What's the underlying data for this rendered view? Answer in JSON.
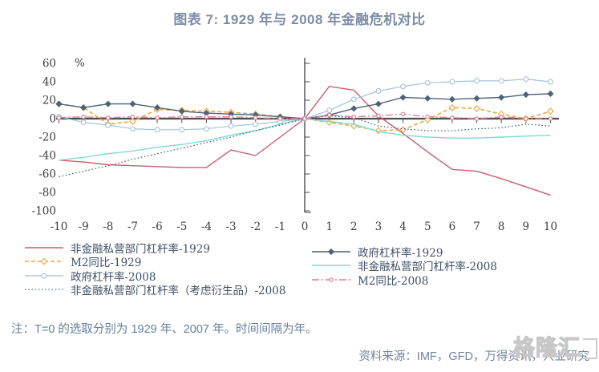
{
  "title": "图表 7: 1929 年与 2008 年金融危机对比",
  "note": "注：T=0 的选取分别为 1929 年、2007 年。时间间隔为年。",
  "source": "资料来源：IMF，GFD，万得资讯，兴业研究",
  "watermark": "格隆汇",
  "colors": {
    "title": "#7e8ca6",
    "note": "#66809f",
    "source": "#75859c",
    "legend_text": "#3e4f66",
    "axis": "#4d4d4d",
    "tick_label": "#3c3c3c"
  },
  "chart_data": {
    "type": "line",
    "unit_label": "%",
    "x": [
      -10,
      -9,
      -8,
      -7,
      -6,
      -5,
      -4,
      -3,
      -2,
      -1,
      0,
      1,
      2,
      3,
      4,
      5,
      6,
      7,
      8,
      9,
      10
    ],
    "xticks": [
      -10,
      -9,
      -8,
      -7,
      -6,
      -5,
      -4,
      -3,
      -2,
      -1,
      0,
      1,
      2,
      3,
      4,
      5,
      6,
      7,
      8,
      9,
      10
    ],
    "yticks": [
      60,
      40,
      20,
      0,
      -20,
      -40,
      -60,
      -80,
      -100
    ],
    "ylim": [
      -100,
      60
    ],
    "grid": false,
    "legend_position": "bottom",
    "series": [
      {
        "id": "private_1929",
        "name": "非金融私营部门杠杆率-1929",
        "color": "#c75f6e",
        "style": "solid",
        "marker": "none",
        "width": 1.4,
        "values": [
          -45,
          -47,
          -50,
          -51,
          -52,
          -53,
          -53,
          -34,
          -40,
          -20,
          0,
          35,
          31,
          3,
          -16,
          -36,
          -55,
          -57,
          -65,
          -74,
          -83
        ]
      },
      {
        "id": "m2_1929",
        "name": "M2同比-1929",
        "color": "#e8a93e",
        "style": "dashed",
        "marker": "diamond-open",
        "width": 1.6,
        "values": [
          16,
          12,
          -6,
          -3,
          10,
          9,
          8,
          7,
          5,
          2,
          0,
          -4,
          -8,
          -13,
          -12,
          -1,
          12,
          11,
          5,
          0,
          8
        ]
      },
      {
        "id": "gov_1929",
        "name": "政府杠杆率-1929",
        "color": "#4d6379",
        "style": "solid",
        "marker": "diamond",
        "width": 1.4,
        "values": [
          16,
          12,
          16,
          16,
          12,
          8,
          6,
          5,
          4,
          2,
          0,
          4,
          11,
          16,
          23,
          22,
          21,
          22,
          23,
          26,
          27
        ]
      },
      {
        "id": "gov_2008",
        "name": "政府杠杆率-2008",
        "color": "#a6c1dd",
        "style": "solid",
        "marker": "circle-open",
        "width": 1.2,
        "values": [
          2,
          -4,
          -7,
          -11,
          -12,
          -12,
          -11,
          -8,
          -6,
          -3,
          0,
          9,
          21,
          30,
          35,
          39,
          40,
          41,
          41,
          43,
          40
        ]
      },
      {
        "id": "private_2008",
        "name": "非金融私营部门杠杆率-2008",
        "color": "#7cdcd1",
        "style": "solid",
        "marker": "none",
        "width": 1.4,
        "values": [
          -45,
          -42,
          -38,
          -35,
          -31,
          -28,
          -24,
          -18,
          -13,
          -6,
          0,
          -3,
          -6,
          -14,
          -18,
          -20,
          -21,
          -21,
          -20,
          -19,
          -18
        ]
      },
      {
        "id": "private_deriv_2008",
        "name": "非金融私营部门杠杆率（考虑衍生品）-2008",
        "color": "#31506e",
        "style": "dotted",
        "marker": "none",
        "width": 1.1,
        "values": [
          -63,
          -57,
          -51,
          -44,
          -38,
          -32,
          -26,
          -20,
          -13,
          -7,
          0,
          3,
          1,
          -8,
          -11,
          -13,
          -13,
          -11,
          -10,
          -6,
          -8
        ]
      },
      {
        "id": "m2_2008",
        "name": "M2同比-2008",
        "color": "#e07f92",
        "style": "dashdot",
        "marker": "circle-open-small",
        "width": 1.4,
        "values": [
          1,
          2,
          1,
          2,
          1,
          2,
          2,
          2,
          1,
          0,
          0,
          4,
          2,
          3,
          5,
          2,
          1,
          0,
          2,
          0,
          0
        ]
      }
    ],
    "legend_columns": [
      [
        "private_1929",
        "m2_1929",
        "gov_2008",
        "private_deriv_2008"
      ],
      [
        "gov_1929",
        "private_2008",
        "m2_2008"
      ]
    ]
  }
}
